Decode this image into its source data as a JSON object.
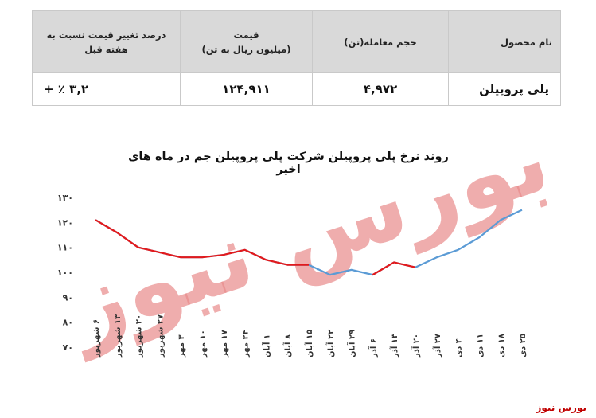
{
  "table": {
    "headers": {
      "product": "نام محصول",
      "volume": "حجم معامله(تن)",
      "price_line1": "قیمت",
      "price_line2": "(میلیون ریال به تن)",
      "change": "درصد تغییر قیمت نسبت به هفته قبل"
    },
    "row": {
      "product": "پلی پروپیلن",
      "volume": "۴,۹۷۲",
      "price": "۱۲۴,۹۱۱",
      "change": "۳,۲ ٪ +"
    }
  },
  "chart_data": {
    "type": "line",
    "title": "روند نرخ پلی پروپیلن شرکت پلی پروپیلن جم در ماه های اخیر",
    "categories": [
      "۶ شهریور",
      "۱۳ شهریور",
      "۲۰ شهریور",
      "۲۷ شهریور",
      "۳ مهر",
      "۱۰ مهر",
      "۱۷ مهر",
      "۲۴ مهر",
      "۱ آبان",
      "۸ آبان",
      "۱۵ آبان",
      "۲۲ آبان",
      "۲۹ آبان",
      "۶ آذر",
      "۱۳ آذر",
      "۲۰ آذر",
      "۲۷ آذر",
      "۴ دی",
      "۱۱ دی",
      "۱۸ دی",
      "۲۵ دی"
    ],
    "x_values": [
      0,
      1,
      2,
      3,
      4,
      5,
      6,
      7,
      8,
      9,
      10,
      11,
      12,
      13,
      14,
      15,
      16,
      17,
      18,
      19,
      20
    ],
    "y_tick_labels": [
      "۷۰",
      "۸۰",
      "۹۰",
      "۱۰۰",
      "۱۱۰",
      "۱۲۰",
      "۱۳۰"
    ],
    "y_ticks": [
      70,
      80,
      90,
      100,
      110,
      120,
      130
    ],
    "ylim": [
      70,
      130
    ],
    "series": [
      {
        "color": "#5b9bd5",
        "values": [
          121,
          116,
          110,
          108,
          106,
          106,
          107,
          109,
          105,
          103,
          103,
          99,
          101,
          99,
          104,
          102,
          106,
          109,
          114,
          121,
          125
        ]
      },
      {
        "color": "#e31a1c",
        "segments": [
          {
            "x": [
              0,
              1,
              2,
              3,
              4,
              5,
              6,
              7,
              8,
              9,
              10
            ],
            "y": [
              121,
              116,
              110,
              108,
              106,
              106,
              107,
              109,
              105,
              103,
              103
            ]
          },
          {
            "x": [
              13,
              14,
              15
            ],
            "y": [
              99,
              104,
              102
            ]
          }
        ]
      }
    ],
    "watermark": "بورس نیوز",
    "grid": false
  },
  "footer": "بورس نیوز"
}
